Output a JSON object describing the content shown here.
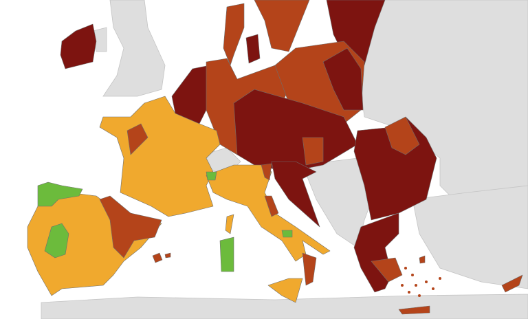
{
  "map": {
    "colors": {
      "sea": "#ffffff",
      "non_eu": "#dedede",
      "dark_red": "#7d1410",
      "red": "#b4441a",
      "orange": "#f0a92e",
      "green": "#6cbb3c"
    }
  }
}
